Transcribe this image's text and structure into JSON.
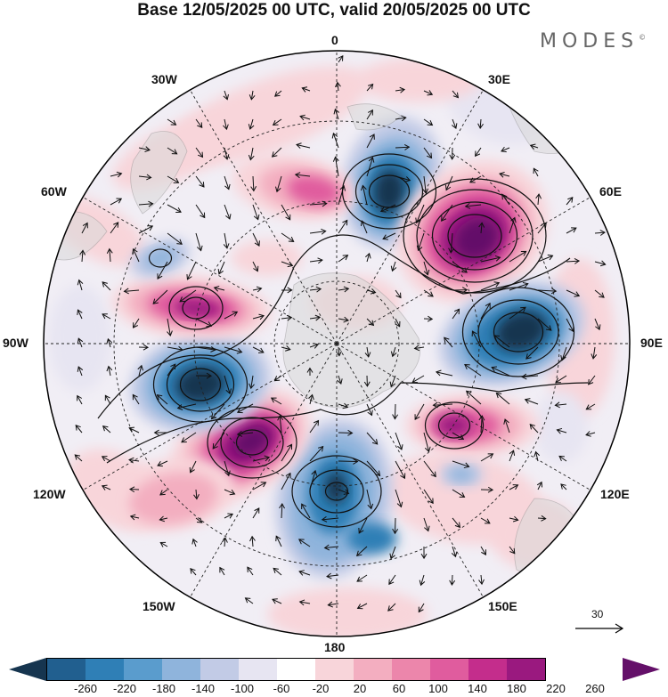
{
  "title": "Base 12/05/2025 00 UTC, valid 20/05/2025 00 UTC",
  "brand": "MODES",
  "brand_mark": "©",
  "longitude_labels": {
    "top": "0",
    "bottom": "180",
    "left": "90W",
    "right": "90E",
    "upper_left_1": "30W",
    "upper_left_2": "60W",
    "upper_right_1": "30E",
    "upper_right_2": "60E",
    "lower_left_1": "120W",
    "lower_left_2": "150W",
    "lower_right_1": "120E",
    "lower_right_2": "150E"
  },
  "vector_scale": "30",
  "colorbar": {
    "colors": [
      "#16354f",
      "#215f8f",
      "#2f7fb6",
      "#5a9ccd",
      "#8fb4dc",
      "#c2cbe6",
      "#e7e5f2",
      "#ffffff",
      "#f8d5da",
      "#f3aec0",
      "#ec86ab",
      "#e05c9e",
      "#c42d8c",
      "#9a197f",
      "#641069"
    ],
    "tick_labels": [
      "-260",
      "-220",
      "-180",
      "-140",
      "-100",
      "-60",
      "-20",
      "20",
      "60",
      "100",
      "140",
      "180",
      "220",
      "260"
    ]
  },
  "color_key": {
    "neg_dark": "#16354f",
    "neg_mid": "#2f7fb6",
    "neg_light": "#8fb4dc",
    "neg_pale": "#c2cbe6",
    "neg_faint": "#e7e5f2",
    "pos_faint": "#f8d5da",
    "pos_light": "#f3aec0",
    "pos_mid": "#e05c9e",
    "pos_dark": "#9a197f",
    "pos_deep": "#641069",
    "land": "#d9d9d9"
  }
}
